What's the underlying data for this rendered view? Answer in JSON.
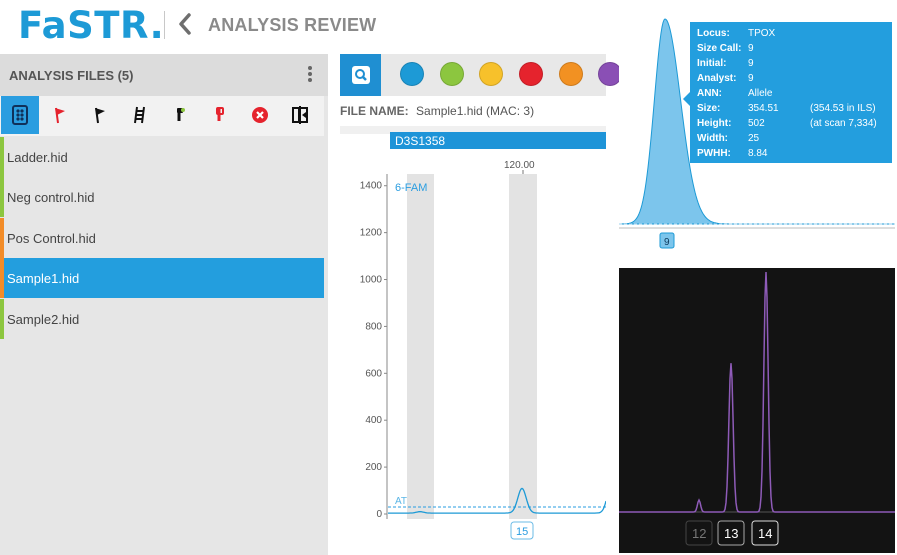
{
  "header": {
    "logo": "FaSTR.",
    "back_icon": "chevron-left-icon",
    "title": "ANALYSIS REVIEW"
  },
  "sidebar": {
    "title": "ANALYSIS FILES (5)",
    "menu_icon": "kebab-menu-icon",
    "tools": [
      "ladder-view-icon",
      "red-flag-icon",
      "black-flag-icon",
      "ladder-icon",
      "green-marker-icon",
      "red-marker-icon",
      "remove-icon",
      "compare-icon"
    ],
    "files": [
      {
        "label": "Ladder.hid",
        "color": "#8cc63f"
      },
      {
        "label": "Neg control.hid",
        "color": "#8cc63f"
      },
      {
        "label": "Pos Control.hid",
        "color": "#f28c28"
      },
      {
        "label": "Sample1.hid",
        "color": "#f28c28",
        "selected": true
      },
      {
        "label": "Sample2.hid",
        "color": "#8cc63f"
      }
    ]
  },
  "main": {
    "zoom_icon": "search-zoom-icon",
    "dyes": [
      {
        "name": "blue",
        "color": "#1d9ad6"
      },
      {
        "name": "green",
        "color": "#8cc63f"
      },
      {
        "name": "yellow",
        "color": "#f7c12b"
      },
      {
        "name": "red",
        "color": "#e5232d"
      },
      {
        "name": "orange",
        "color": "#f29122"
      },
      {
        "name": "purple",
        "color": "#8a4fb5"
      }
    ],
    "file_name_label": "FILE NAME:",
    "file_name_value": "Sample1.hid (MAC: 3)",
    "locus": "D3S1358"
  },
  "chart_data": [
    {
      "type": "line",
      "dye_label": "6-FAM",
      "threshold_label": "AT",
      "xtick": "120.00",
      "ylim": [
        0,
        1450
      ],
      "yticks": [
        0,
        200,
        400,
        600,
        800,
        1000,
        1200,
        1400
      ],
      "threshold": 30,
      "peaks": [
        {
          "label": "15",
          "height": 105
        }
      ],
      "color": "#1d9ad6"
    },
    {
      "type": "area",
      "allele_label": "9",
      "color": "#1d9ad6",
      "tooltip": [
        {
          "key": "Locus:",
          "value": "TPOX",
          "extra": ""
        },
        {
          "key": "Size Call:",
          "value": "9",
          "extra": ""
        },
        {
          "key": "Initial:",
          "value": "9",
          "extra": ""
        },
        {
          "key": "Analyst:",
          "value": "9",
          "extra": ""
        },
        {
          "key": "ANN:",
          "value": "Allele",
          "extra": ""
        },
        {
          "key": "Size:",
          "value": "354.51",
          "extra": "(354.53 in ILS)"
        },
        {
          "key": "Height:",
          "value": "502",
          "extra": "(at scan 7,334)"
        },
        {
          "key": "Width:",
          "value": "25",
          "extra": ""
        },
        {
          "key": "PWHH:",
          "value": "8.84",
          "extra": ""
        }
      ]
    },
    {
      "type": "line",
      "color": "#8e5bb8",
      "allele_labels": [
        "12",
        "13",
        "14"
      ],
      "peak_heights": [
        0.05,
        0.62,
        1.0
      ]
    }
  ]
}
